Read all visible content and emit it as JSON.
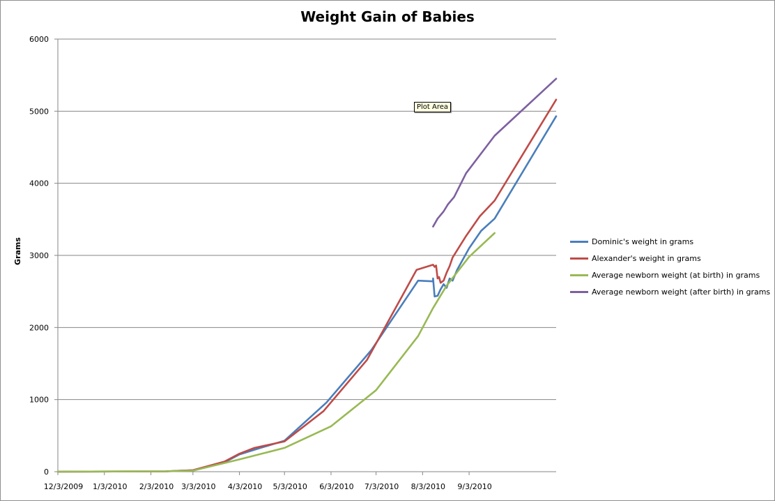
{
  "chart_data": {
    "type": "line",
    "title": "Weight Gain of Babies",
    "ylabel": "Grams",
    "xlabel": "",
    "ylim": [
      0,
      6000
    ],
    "yticks": [
      "0",
      "1000",
      "2000",
      "3000",
      "4000",
      "5000",
      "6000"
    ],
    "xlim": [
      "2009-12-03",
      "2010-10-31"
    ],
    "xticks": [
      {
        "date": "2009-12-03",
        "label": "12/3/2009"
      },
      {
        "date": "2010-01-03",
        "label": "1/3/2010"
      },
      {
        "date": "2010-02-03",
        "label": "2/3/2010"
      },
      {
        "date": "2010-03-03",
        "label": "3/3/2010"
      },
      {
        "date": "2010-04-03",
        "label": "4/3/2010"
      },
      {
        "date": "2010-05-03",
        "label": "5/3/2010"
      },
      {
        "date": "2010-06-03",
        "label": "6/3/2010"
      },
      {
        "date": "2010-07-03",
        "label": "7/3/2010"
      },
      {
        "date": "2010-08-03",
        "label": "8/3/2010"
      },
      {
        "date": "2010-09-03",
        "label": "9/3/2010"
      }
    ],
    "grid": true,
    "legend_position": "right",
    "series": [
      {
        "name": "Dominic's weight in grams",
        "color": "#4a7ebb",
        "points": [
          [
            "2009-12-03",
            0
          ],
          [
            "2010-02-13",
            5
          ],
          [
            "2010-03-03",
            20
          ],
          [
            "2010-03-24",
            130
          ],
          [
            "2010-04-03",
            240
          ],
          [
            "2010-04-17",
            330
          ],
          [
            "2010-05-03",
            430
          ],
          [
            "2010-05-31",
            960
          ],
          [
            "2010-06-30",
            1690
          ],
          [
            "2010-07-31",
            2650
          ],
          [
            "2010-08-10",
            2640
          ],
          [
            "2010-08-10",
            2680
          ],
          [
            "2010-08-11",
            2430
          ],
          [
            "2010-08-13",
            2440
          ],
          [
            "2010-08-15",
            2530
          ],
          [
            "2010-08-17",
            2600
          ],
          [
            "2010-08-19",
            2550
          ],
          [
            "2010-08-21",
            2680
          ],
          [
            "2010-08-23",
            2650
          ],
          [
            "2010-08-26",
            2800
          ],
          [
            "2010-09-03",
            3100
          ],
          [
            "2010-09-11",
            3340
          ],
          [
            "2010-09-20",
            3510
          ],
          [
            "2010-10-31",
            4930
          ]
        ]
      },
      {
        "name": "Alexander's weight in grams",
        "color": "#be4b48",
        "points": [
          [
            "2009-12-03",
            0
          ],
          [
            "2010-02-13",
            5
          ],
          [
            "2010-03-03",
            20
          ],
          [
            "2010-03-24",
            140
          ],
          [
            "2010-04-03",
            250
          ],
          [
            "2010-04-13",
            330
          ],
          [
            "2010-05-03",
            420
          ],
          [
            "2010-05-29",
            840
          ],
          [
            "2010-06-27",
            1550
          ],
          [
            "2010-07-30",
            2800
          ],
          [
            "2010-08-10",
            2870
          ],
          [
            "2010-08-11",
            2840
          ],
          [
            "2010-08-12",
            2860
          ],
          [
            "2010-08-13",
            2680
          ],
          [
            "2010-08-14",
            2700
          ],
          [
            "2010-08-15",
            2620
          ],
          [
            "2010-08-17",
            2650
          ],
          [
            "2010-08-19",
            2760
          ],
          [
            "2010-08-21",
            2850
          ],
          [
            "2010-08-23",
            2970
          ],
          [
            "2010-09-01",
            3270
          ],
          [
            "2010-09-10",
            3540
          ],
          [
            "2010-09-20",
            3760
          ],
          [
            "2010-10-31",
            5160
          ]
        ]
      },
      {
        "name": "Average newborn weight (at birth) in grams",
        "color": "#98b954",
        "points": [
          [
            "2009-12-03",
            0
          ],
          [
            "2010-02-13",
            5
          ],
          [
            "2010-03-03",
            15
          ],
          [
            "2010-04-03",
            170
          ],
          [
            "2010-05-03",
            330
          ],
          [
            "2010-06-03",
            630
          ],
          [
            "2010-07-03",
            1130
          ],
          [
            "2010-07-31",
            1880
          ],
          [
            "2010-08-10",
            2270
          ],
          [
            "2010-08-19",
            2580
          ],
          [
            "2010-09-03",
            2980
          ],
          [
            "2010-09-20",
            3310
          ]
        ]
      },
      {
        "name": "Average newborn weight (after birth) in grams",
        "color": "#7d60a0",
        "points": [
          [
            "2010-08-10",
            3400
          ],
          [
            "2010-08-13",
            3510
          ],
          [
            "2010-08-17",
            3610
          ],
          [
            "2010-08-20",
            3710
          ],
          [
            "2010-08-24",
            3810
          ],
          [
            "2010-09-01",
            4140
          ],
          [
            "2010-09-20",
            4660
          ],
          [
            "2010-10-31",
            5450
          ]
        ]
      }
    ]
  },
  "tooltip": {
    "text": "Plot Area"
  }
}
